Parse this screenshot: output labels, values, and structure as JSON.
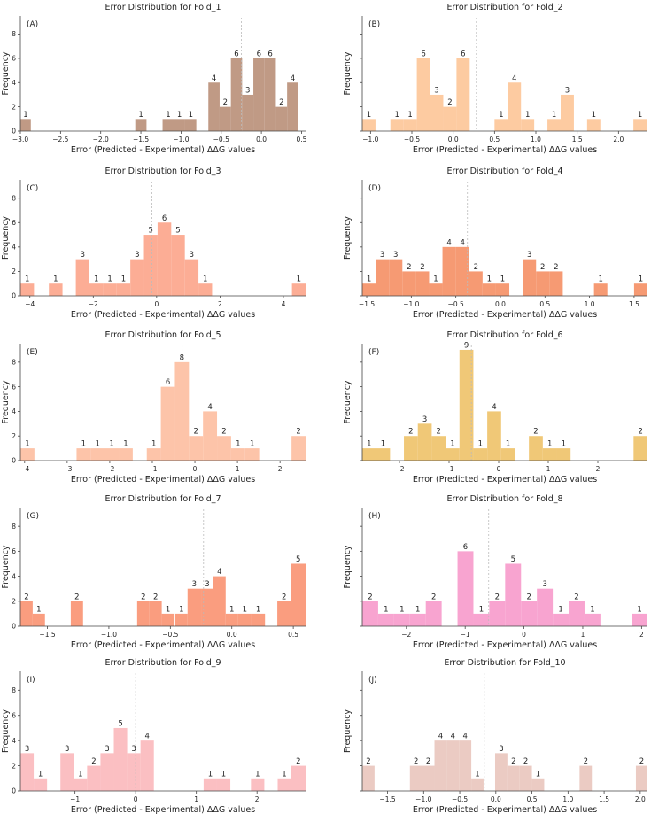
{
  "figure": {
    "xlabel": "Error (Predicted - Experimental) ΔΔG values",
    "ylabel": "Frequency"
  },
  "chart_data": [
    {
      "type": "bar",
      "panel": "(A)",
      "title": "Error Distribution for Fold_1",
      "color": "#c09a85",
      "xlim": [
        -3.0,
        0.55
      ],
      "ylim": [
        0,
        9.5
      ],
      "mean": -0.25,
      "xticks": [
        -3.0,
        -2.5,
        -2.0,
        -1.5,
        -1.0,
        -0.5,
        0.0,
        0.5
      ],
      "xtick_labels": [
        "−3.0",
        "−2.5",
        "−2.0",
        "−1.5",
        "−1.0",
        "−0.5",
        "0.0",
        "0.5"
      ],
      "yticks": [
        0,
        2,
        4,
        6,
        8
      ],
      "ytick_labels": [
        "0",
        "2",
        "4",
        "6",
        "8"
      ],
      "bins": [
        [
          -3.0,
          -2.87,
          1
        ],
        [
          -1.57,
          -1.43,
          1
        ],
        [
          -1.23,
          -1.09,
          1
        ],
        [
          -1.09,
          -0.95,
          1
        ],
        [
          -0.95,
          -0.81,
          1
        ],
        [
          -0.66,
          -0.52,
          4
        ],
        [
          -0.52,
          -0.38,
          2
        ],
        [
          -0.38,
          -0.24,
          6
        ],
        [
          -0.24,
          -0.1,
          3
        ],
        [
          -0.1,
          0.04,
          6
        ],
        [
          0.04,
          0.18,
          6
        ],
        [
          0.18,
          0.32,
          2
        ],
        [
          0.32,
          0.46,
          4
        ]
      ]
    },
    {
      "type": "bar",
      "panel": "(B)",
      "title": "Error Distribution for Fold_2",
      "color": "#fdcba1",
      "xlim": [
        -1.1,
        2.35
      ],
      "ylim": [
        0,
        9.5
      ],
      "mean": 0.28,
      "xticks": [
        -1.0,
        -0.5,
        0.0,
        0.5,
        1.0,
        1.5,
        2.0
      ],
      "xtick_labels": [
        "−1.0",
        "−0.5",
        "0.0",
        "0.5",
        "1.0",
        "1.5",
        "2.0"
      ],
      "yticks": [
        0,
        2,
        4,
        6,
        8
      ],
      "ytick_labels": [
        "",
        "",
        "",
        "",
        ""
      ],
      "bins": [
        [
          -1.1,
          -0.94,
          1
        ],
        [
          -0.76,
          -0.6,
          1
        ],
        [
          -0.6,
          -0.44,
          1
        ],
        [
          -0.44,
          -0.28,
          6
        ],
        [
          -0.28,
          -0.12,
          3
        ],
        [
          -0.12,
          0.04,
          2
        ],
        [
          0.04,
          0.2,
          6
        ],
        [
          0.5,
          0.66,
          1
        ],
        [
          0.66,
          0.82,
          4
        ],
        [
          0.82,
          0.98,
          1
        ],
        [
          1.14,
          1.3,
          1
        ],
        [
          1.3,
          1.46,
          3
        ],
        [
          1.62,
          1.78,
          1
        ],
        [
          2.18,
          2.34,
          1
        ]
      ]
    },
    {
      "type": "bar",
      "panel": "(C)",
      "title": "Error Distribution for Fold_3",
      "color": "#fcad95",
      "xlim": [
        -4.3,
        4.7
      ],
      "ylim": [
        0,
        9.5
      ],
      "mean": -0.15,
      "xticks": [
        -4,
        -2,
        0,
        2,
        4
      ],
      "xtick_labels": [
        "−4",
        "−2",
        "0",
        "2",
        "4"
      ],
      "yticks": [
        0,
        2,
        4,
        6,
        8
      ],
      "ytick_labels": [
        "0",
        "2",
        "4",
        "6",
        "8"
      ],
      "bins": [
        [
          -4.3,
          -3.87,
          1
        ],
        [
          -3.4,
          -2.97,
          1
        ],
        [
          -2.55,
          -2.12,
          3
        ],
        [
          -2.12,
          -1.69,
          1
        ],
        [
          -1.69,
          -1.26,
          1
        ],
        [
          -1.26,
          -0.83,
          1
        ],
        [
          -0.83,
          -0.4,
          3
        ],
        [
          -0.4,
          0.03,
          5
        ],
        [
          0.03,
          0.46,
          6
        ],
        [
          0.46,
          0.89,
          5
        ],
        [
          0.89,
          1.32,
          3
        ],
        [
          1.32,
          1.75,
          1
        ],
        [
          4.27,
          4.7,
          1
        ]
      ]
    },
    {
      "type": "bar",
      "panel": "(D)",
      "title": "Error Distribution for Fold_4",
      "color": "#f69a73",
      "xlim": [
        -1.55,
        1.65
      ],
      "ylim": [
        0,
        9.5
      ],
      "mean": -0.37,
      "xticks": [
        -1.5,
        -1.0,
        -0.5,
        0.0,
        0.5,
        1.0,
        1.5
      ],
      "xtick_labels": [
        "−1.5",
        "−1.0",
        "−0.5",
        "0.0",
        "0.5",
        "1.0",
        "1.5"
      ],
      "yticks": [
        0,
        2,
        4,
        6,
        8
      ],
      "ytick_labels": [
        "",
        "",
        "",
        "",
        ""
      ],
      "bins": [
        [
          -1.55,
          -1.4,
          1
        ],
        [
          -1.4,
          -1.25,
          3
        ],
        [
          -1.25,
          -1.1,
          3
        ],
        [
          -1.1,
          -0.95,
          2
        ],
        [
          -0.95,
          -0.8,
          2
        ],
        [
          -0.8,
          -0.65,
          1
        ],
        [
          -0.65,
          -0.5,
          4
        ],
        [
          -0.5,
          -0.35,
          4
        ],
        [
          -0.35,
          -0.2,
          2
        ],
        [
          -0.2,
          -0.05,
          1
        ],
        [
          -0.05,
          0.1,
          1
        ],
        [
          0.25,
          0.4,
          3
        ],
        [
          0.4,
          0.55,
          2
        ],
        [
          0.55,
          0.7,
          2
        ],
        [
          1.05,
          1.2,
          1
        ],
        [
          1.5,
          1.65,
          1
        ]
      ]
    },
    {
      "type": "bar",
      "panel": "(E)",
      "title": "Error Distribution for Fold_5",
      "color": "#fdc4a9",
      "xlim": [
        -4.1,
        2.6
      ],
      "ylim": [
        0,
        9.5
      ],
      "mean": -0.3,
      "xticks": [
        -4,
        -3,
        -2,
        -1,
        0,
        1,
        2
      ],
      "xtick_labels": [
        "−4",
        "−3",
        "−2",
        "−1",
        "0",
        "1",
        "2"
      ],
      "yticks": [
        0,
        2,
        4,
        6,
        8
      ],
      "ytick_labels": [
        "0",
        "2",
        "4",
        "6",
        "8"
      ],
      "bins": [
        [
          -4.1,
          -3.77,
          1
        ],
        [
          -2.78,
          -2.45,
          1
        ],
        [
          -2.45,
          -2.12,
          1
        ],
        [
          -2.12,
          -1.79,
          1
        ],
        [
          -1.79,
          -1.46,
          1
        ],
        [
          -1.13,
          -0.8,
          1
        ],
        [
          -0.8,
          -0.47,
          6
        ],
        [
          -0.47,
          -0.14,
          8
        ],
        [
          -0.14,
          0.19,
          2
        ],
        [
          0.19,
          0.52,
          4
        ],
        [
          0.52,
          0.85,
          2
        ],
        [
          0.85,
          1.18,
          1
        ],
        [
          1.18,
          1.51,
          1
        ],
        [
          2.27,
          2.6,
          2
        ]
      ]
    },
    {
      "type": "bar",
      "panel": "(F)",
      "title": "Error Distribution for Fold_6",
      "color": "#f0c877",
      "xlim": [
        -2.75,
        3.0
      ],
      "ylim": [
        0,
        9.5
      ],
      "mean": -0.55,
      "xticks": [
        -2,
        -1,
        0,
        1,
        2
      ],
      "xtick_labels": [
        "−2",
        "−1",
        "0",
        "1",
        "2"
      ],
      "yticks": [
        0,
        2,
        4,
        6,
        8
      ],
      "ytick_labels": [
        "",
        "",
        "",
        "",
        ""
      ],
      "bins": [
        [
          -2.75,
          -2.47,
          1
        ],
        [
          -2.47,
          -2.19,
          1
        ],
        [
          -1.91,
          -1.63,
          2
        ],
        [
          -1.63,
          -1.35,
          3
        ],
        [
          -1.35,
          -1.07,
          2
        ],
        [
          -1.07,
          -0.79,
          1
        ],
        [
          -0.79,
          -0.51,
          9
        ],
        [
          -0.51,
          -0.23,
          1
        ],
        [
          -0.23,
          0.05,
          4
        ],
        [
          0.05,
          0.33,
          1
        ],
        [
          0.61,
          0.89,
          2
        ],
        [
          0.89,
          1.17,
          1
        ],
        [
          1.17,
          1.45,
          1
        ],
        [
          2.72,
          3.0,
          2
        ]
      ]
    },
    {
      "type": "bar",
      "panel": "(G)",
      "title": "Error Distribution for Fold_7",
      "color": "#fa9d7f",
      "xlim": [
        -1.72,
        0.6
      ],
      "ylim": [
        0,
        9.5
      ],
      "mean": -0.23,
      "xticks": [
        -1.5,
        -1.0,
        -0.5,
        0.0,
        0.5
      ],
      "xtick_labels": [
        "−1.5",
        "−1.0",
        "−0.5",
        "0.0",
        "0.5"
      ],
      "yticks": [
        0,
        2,
        4,
        6,
        8
      ],
      "ytick_labels": [
        "0",
        "2",
        "4",
        "6",
        "8"
      ],
      "bins": [
        [
          -1.72,
          -1.62,
          2
        ],
        [
          -1.62,
          -1.52,
          1
        ],
        [
          -1.31,
          -1.21,
          2
        ],
        [
          -0.77,
          -0.67,
          2
        ],
        [
          -0.67,
          -0.57,
          2
        ],
        [
          -0.57,
          -0.47,
          1
        ],
        [
          -0.46,
          -0.36,
          1
        ],
        [
          -0.36,
          -0.25,
          3
        ],
        [
          -0.25,
          -0.15,
          3
        ],
        [
          -0.15,
          -0.05,
          4
        ],
        [
          -0.05,
          0.05,
          1
        ],
        [
          0.05,
          0.16,
          1
        ],
        [
          0.16,
          0.27,
          1
        ],
        [
          0.37,
          0.48,
          2
        ],
        [
          0.48,
          0.6,
          5
        ]
      ]
    },
    {
      "type": "bar",
      "panel": "(H)",
      "title": "Error Distribution for Fold_8",
      "color": "#f8a4d0",
      "xlim": [
        -2.75,
        2.1
      ],
      "ylim": [
        0,
        9.5
      ],
      "mean": -0.6,
      "xticks": [
        -2,
        -1,
        0,
        1,
        2
      ],
      "xtick_labels": [
        "−2",
        "−1",
        "0",
        "1",
        "2"
      ],
      "yticks": [
        0,
        2,
        4,
        6,
        8
      ],
      "ytick_labels": [
        "",
        "",
        "",
        "",
        ""
      ],
      "bins": [
        [
          -2.75,
          -2.48,
          2
        ],
        [
          -2.48,
          -2.21,
          1
        ],
        [
          -2.21,
          -1.94,
          1
        ],
        [
          -1.94,
          -1.67,
          1
        ],
        [
          -1.67,
          -1.4,
          2
        ],
        [
          -1.13,
          -0.86,
          6
        ],
        [
          -0.86,
          -0.59,
          1
        ],
        [
          -0.59,
          -0.32,
          2
        ],
        [
          -0.32,
          -0.05,
          5
        ],
        [
          -0.05,
          0.22,
          2
        ],
        [
          0.22,
          0.49,
          3
        ],
        [
          0.49,
          0.76,
          1
        ],
        [
          0.76,
          1.03,
          2
        ],
        [
          1.03,
          1.3,
          1
        ],
        [
          1.83,
          2.1,
          1
        ]
      ]
    },
    {
      "type": "bar",
      "panel": "(I)",
      "title": "Error Distribution for Fold_9",
      "color": "#fbbfc2",
      "xlim": [
        -1.9,
        2.8
      ],
      "ylim": [
        0,
        9.5
      ],
      "mean": 0.0,
      "xticks": [
        -1,
        0,
        1,
        2
      ],
      "xtick_labels": [
        "−1",
        "0",
        "1",
        "2"
      ],
      "yticks": [
        0,
        2,
        4,
        6,
        8
      ],
      "ytick_labels": [
        "0",
        "2",
        "4",
        "6",
        "8"
      ],
      "bins": [
        [
          -1.9,
          -1.68,
          3
        ],
        [
          -1.68,
          -1.46,
          1
        ],
        [
          -1.24,
          -1.02,
          3
        ],
        [
          -1.02,
          -0.8,
          1
        ],
        [
          -0.8,
          -0.58,
          2
        ],
        [
          -0.58,
          -0.36,
          3
        ],
        [
          -0.36,
          -0.14,
          5
        ],
        [
          -0.14,
          0.08,
          3
        ],
        [
          0.08,
          0.3,
          4
        ],
        [
          1.12,
          1.34,
          1
        ],
        [
          1.34,
          1.56,
          1
        ],
        [
          1.9,
          2.12,
          1
        ],
        [
          2.34,
          2.56,
          1
        ],
        [
          2.56,
          2.8,
          2
        ]
      ]
    },
    {
      "type": "bar",
      "panel": "(J)",
      "title": "Error Distribution for Fold_10",
      "color": "#ebcbc3",
      "xlim": [
        -1.85,
        2.1
      ],
      "ylim": [
        0,
        9.5
      ],
      "mean": -0.16,
      "xticks": [
        -1.5,
        -1.0,
        -0.5,
        0.0,
        0.5,
        1.0,
        1.5,
        2.0
      ],
      "xtick_labels": [
        "−1.5",
        "−1.0",
        "−0.5",
        "0.0",
        "0.5",
        "1.0",
        "1.5",
        "2.0"
      ],
      "yticks": [
        0,
        2,
        4,
        6,
        8
      ],
      "ytick_labels": [
        "",
        "",
        "",
        "",
        ""
      ],
      "bins": [
        [
          -1.85,
          -1.68,
          2
        ],
        [
          -1.19,
          -1.02,
          2
        ],
        [
          -1.02,
          -0.85,
          2
        ],
        [
          -0.85,
          -0.68,
          4
        ],
        [
          -0.68,
          -0.51,
          4
        ],
        [
          -0.51,
          -0.34,
          4
        ],
        [
          -0.34,
          -0.17,
          1
        ],
        [
          -0.01,
          0.16,
          3
        ],
        [
          0.16,
          0.33,
          2
        ],
        [
          0.33,
          0.5,
          2
        ],
        [
          0.5,
          0.67,
          1
        ],
        [
          1.16,
          1.33,
          2
        ],
        [
          1.94,
          2.1,
          2
        ]
      ]
    }
  ]
}
